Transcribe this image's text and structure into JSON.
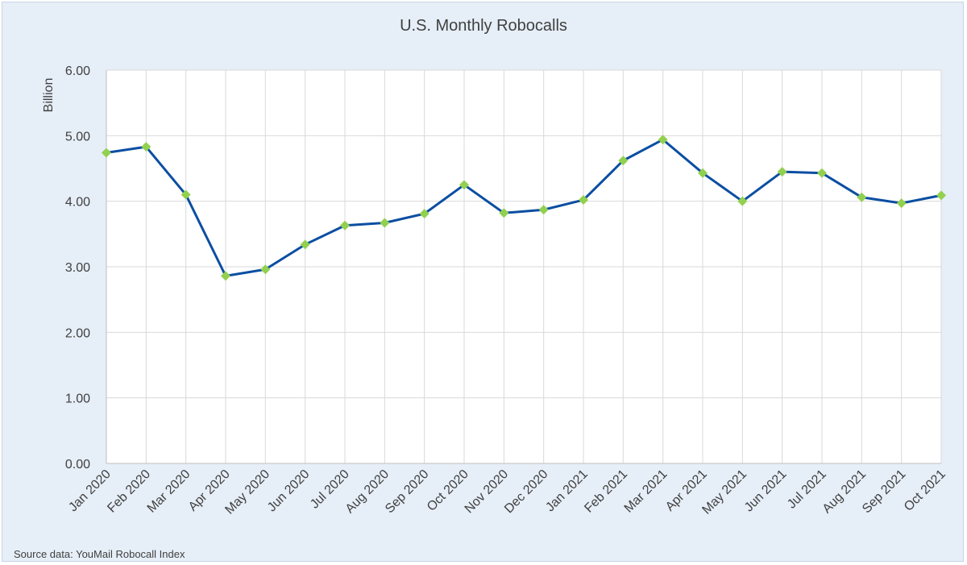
{
  "chart_data": {
    "type": "line",
    "title": "U.S. Monthly Robocalls",
    "ylabel": "Billion",
    "xlabel": "",
    "categories": [
      "Jan 2020",
      "Feb 2020",
      "Mar 2020",
      "Apr 2020",
      "May 2020",
      "Jun 2020",
      "Jul 2020",
      "Aug 2020",
      "Sep 2020",
      "Oct 2020",
      "Nov 2020",
      "Dec 2020",
      "Jan 2021",
      "Feb 2021",
      "Mar 2021",
      "Apr 2021",
      "May 2021",
      "Jun 2021",
      "Jul 2021",
      "Aug 2021",
      "Sep 2021",
      "Oct 2021"
    ],
    "values": [
      4.74,
      4.83,
      4.1,
      2.86,
      2.96,
      3.34,
      3.63,
      3.67,
      3.81,
      4.25,
      3.82,
      3.87,
      4.02,
      4.62,
      4.94,
      4.43,
      4.0,
      4.45,
      4.43,
      4.06,
      3.97,
      4.09
    ],
    "ylim": [
      0,
      6
    ],
    "yticks": [
      "0.00",
      "1.00",
      "2.00",
      "3.00",
      "4.00",
      "5.00",
      "6.00"
    ],
    "grid": true,
    "legend": "none",
    "colors": {
      "line": "#0b4ea2",
      "marker": "#92d050",
      "background": "#e6eef7",
      "plot": "#ffffff",
      "grid": "#d9d9d9"
    },
    "source_note": "Source data: YouMail Robocall Index"
  }
}
